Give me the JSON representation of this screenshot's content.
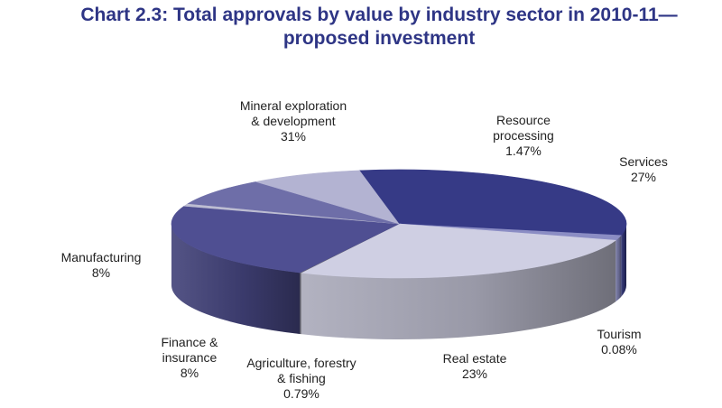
{
  "chart_data": {
    "type": "pie",
    "title_line1": "Chart 2.3: Total approvals by value by industry sector in 2010-11—",
    "title_line2": "proposed investment",
    "slices": [
      {
        "lines": [
          "Mineral exploration",
          "& development"
        ],
        "value_label": "31%",
        "value": 31,
        "color": "#363a86"
      },
      {
        "lines": [
          "Resource",
          "processing"
        ],
        "value_label": "1.47%",
        "value": 1.47,
        "color": "#8b8dc4"
      },
      {
        "lines": [
          "Services"
        ],
        "value_label": "27%",
        "value": 27,
        "color": "#cfcfe3"
      },
      {
        "lines": [
          "Tourism"
        ],
        "value_label": "0.08%",
        "value": 0.08,
        "color": "#6b6b72"
      },
      {
        "lines": [
          "Real estate"
        ],
        "value_label": "23%",
        "value": 23,
        "color": "#4f4f92"
      },
      {
        "lines": [
          "Agriculture, forestry",
          "& fishing"
        ],
        "value_label": "0.79%",
        "value": 0.79,
        "color": "#bdbdd2"
      },
      {
        "lines": [
          "Finance &",
          "insurance"
        ],
        "value_label": "8%",
        "value": 8,
        "color": "#6e6ea8"
      },
      {
        "lines": [
          "Manufacturing"
        ],
        "value_label": "8%",
        "value": 8,
        "color": "#b3b3d2"
      }
    ]
  }
}
